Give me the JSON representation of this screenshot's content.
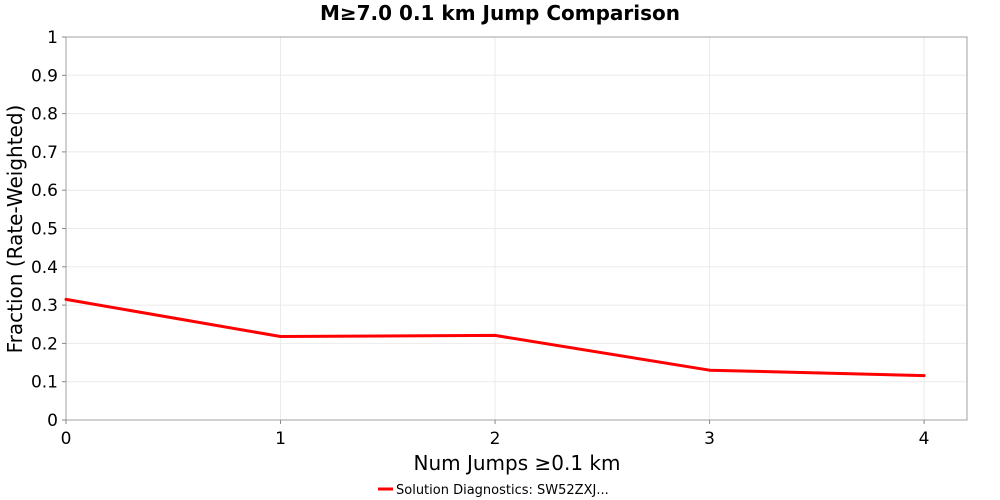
{
  "chart_data": {
    "type": "line",
    "title": "M≥7.0 0.1 km Jump Comparison",
    "xlabel": "Num Jumps ≥0.1 km",
    "ylabel": "Fraction (Rate-Weighted)",
    "xlim": [
      0,
      4.2
    ],
    "ylim": [
      0,
      1
    ],
    "grid": true,
    "x_ticks": [
      "0",
      "1",
      "2",
      "3",
      "4"
    ],
    "y_ticks": [
      "0",
      "0.1",
      "0.2",
      "0.3",
      "0.4",
      "0.5",
      "0.6",
      "0.7",
      "0.8",
      "0.9",
      "1"
    ],
    "legend_position": "bottom-center",
    "series": [
      {
        "name": "Solution Diagnostics: SW52ZXJ...",
        "color": "#ff0000",
        "x": [
          0,
          1,
          2,
          3,
          4
        ],
        "y": [
          0.315,
          0.218,
          0.221,
          0.13,
          0.116
        ]
      }
    ]
  }
}
